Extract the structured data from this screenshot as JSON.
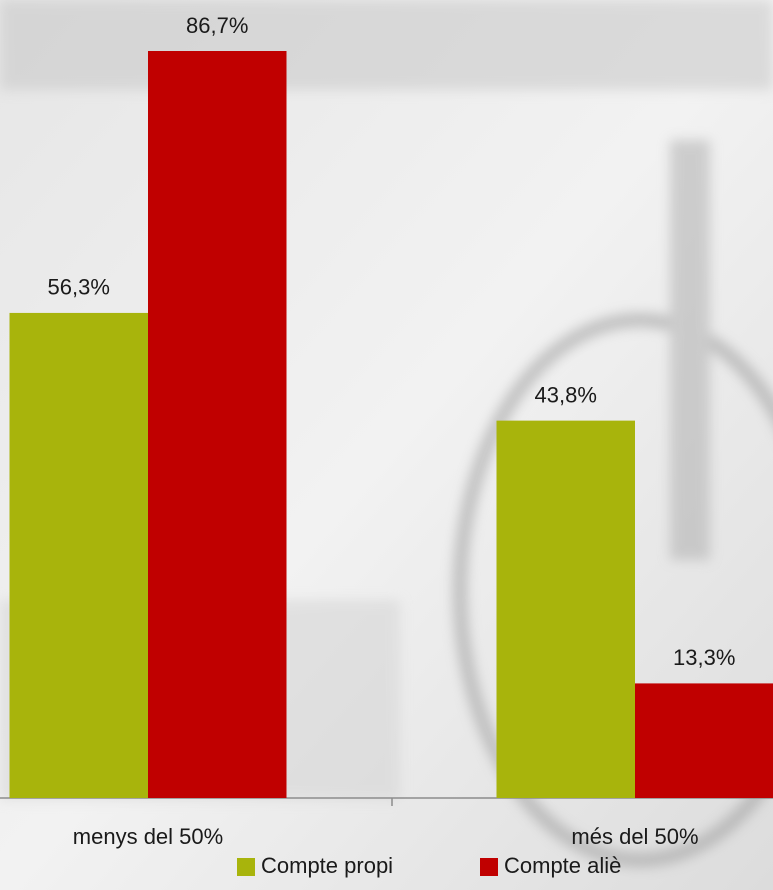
{
  "chart_data": {
    "type": "bar",
    "categories": [
      "menys del 50%",
      "més del 50%"
    ],
    "series": [
      {
        "name": "Compte propi",
        "color": "#a8b40c",
        "values": [
          56.3,
          43.8
        ],
        "value_labels": [
          "56,3%",
          "43,8%"
        ]
      },
      {
        "name": "Compte aliè",
        "color": "#c00000",
        "values": [
          86.7,
          13.3
        ],
        "value_labels": [
          "86,7%",
          "13,3%"
        ]
      }
    ],
    "legend": "bottom"
  }
}
